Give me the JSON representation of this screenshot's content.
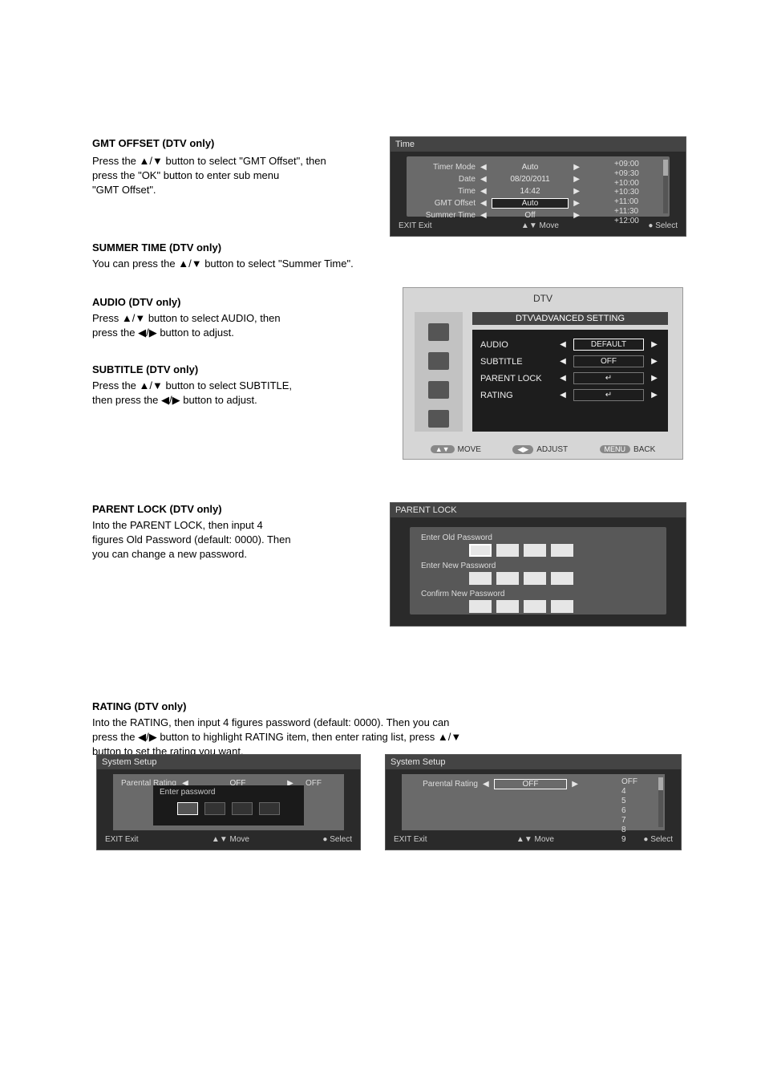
{
  "section_gmt": {
    "heading": "GMT OFFSET (DTV only)",
    "line1_pre": "Press the ",
    "line1_post": " button to select \"GMT Offset\", then",
    "line2": "press the \"OK\" button to enter sub menu",
    "line3": "\"GMT Offset\"."
  },
  "section_summer": {
    "heading": "SUMMER TIME (DTV only)",
    "line1_pre": "You can press the ",
    "line1_post": " button to select \"Summer Time\"."
  },
  "section_audio": {
    "heading": "AUDIO (DTV only)",
    "line1_pre": "Press ",
    "line1_post": " button to select AUDIO, then",
    "line2_pre": "press the ",
    "line2_post": " button to adjust."
  },
  "section_subtitle": {
    "heading": "SUBTITLE (DTV only)",
    "line1_pre": "Press the ",
    "line1_post": " button to select SUBTITLE,",
    "line2_pre": "then press the ",
    "line2_post": " button to adjust."
  },
  "section_plock": {
    "heading": "PARENT LOCK (DTV only)",
    "line1": "Into the PARENT LOCK, then input 4",
    "line2": "figures Old Password (default: 0000). Then",
    "line3": "you can change a new password."
  },
  "section_rating": {
    "heading": "RATING (DTV only)",
    "line1": "Into the RATING, then input 4 figures password (default: 0000). Then you can",
    "line2_pre": "press the ",
    "line2_mid": " button to highlight RATING item, then enter rating list, press ",
    "line2_post": "",
    "line3": "button to set the rating you want."
  },
  "shot_time": {
    "title": "Time",
    "rows": [
      {
        "label": "Timer Mode",
        "value": "Auto"
      },
      {
        "label": "Date",
        "value": "08/20/2011"
      },
      {
        "label": "Time",
        "value": "14:42"
      },
      {
        "label": "GMT Offset",
        "value": "Auto",
        "selected": true
      },
      {
        "label": "Summer Time",
        "value": "Off"
      }
    ],
    "offsets": [
      "+09:00",
      "+09:30",
      "+10:00",
      "+10:30",
      "+11:00",
      "+11:30",
      "+12:00"
    ],
    "footer_exit": "EXIT  Exit",
    "footer_move": "▲▼ Move",
    "footer_select": "●   Select"
  },
  "shot_dtv": {
    "header": "DTV",
    "subheader": "DTV\\ADVANCED SETTING",
    "rows": [
      {
        "label": "AUDIO",
        "value": "DEFAULT",
        "selected": true
      },
      {
        "label": "SUBTITLE",
        "value": "OFF"
      },
      {
        "label": "PARENT LOCK",
        "value": "↵"
      },
      {
        "label": "RATING",
        "value": "↵"
      }
    ],
    "hints": {
      "move": "MOVE",
      "adjust": "ADJUST",
      "back": "BACK"
    }
  },
  "shot_plock": {
    "title": "PARENT LOCK",
    "rows": [
      {
        "label": "Enter Old Password",
        "selected": true
      },
      {
        "label": "Enter New Password"
      },
      {
        "label": "Confirm New Password"
      }
    ]
  },
  "shot_rating_pw": {
    "title": "System Setup",
    "rating_label": "Parental Rating",
    "rating_value": "OFF",
    "off_text": "OFF",
    "modal_title": "Enter password",
    "footer_exit": "EXIT  Exit",
    "footer_move": "▲▼ Move",
    "footer_select": "●   Select"
  },
  "shot_rating_list": {
    "title": "System Setup",
    "rating_label": "Parental Rating",
    "rating_value": "OFF",
    "list": [
      "OFF",
      "4",
      "5",
      "6",
      "7",
      "8",
      "9"
    ],
    "footer_exit": "EXIT  Exit",
    "footer_move": "▲▼ Move",
    "footer_select": "●   Select"
  }
}
